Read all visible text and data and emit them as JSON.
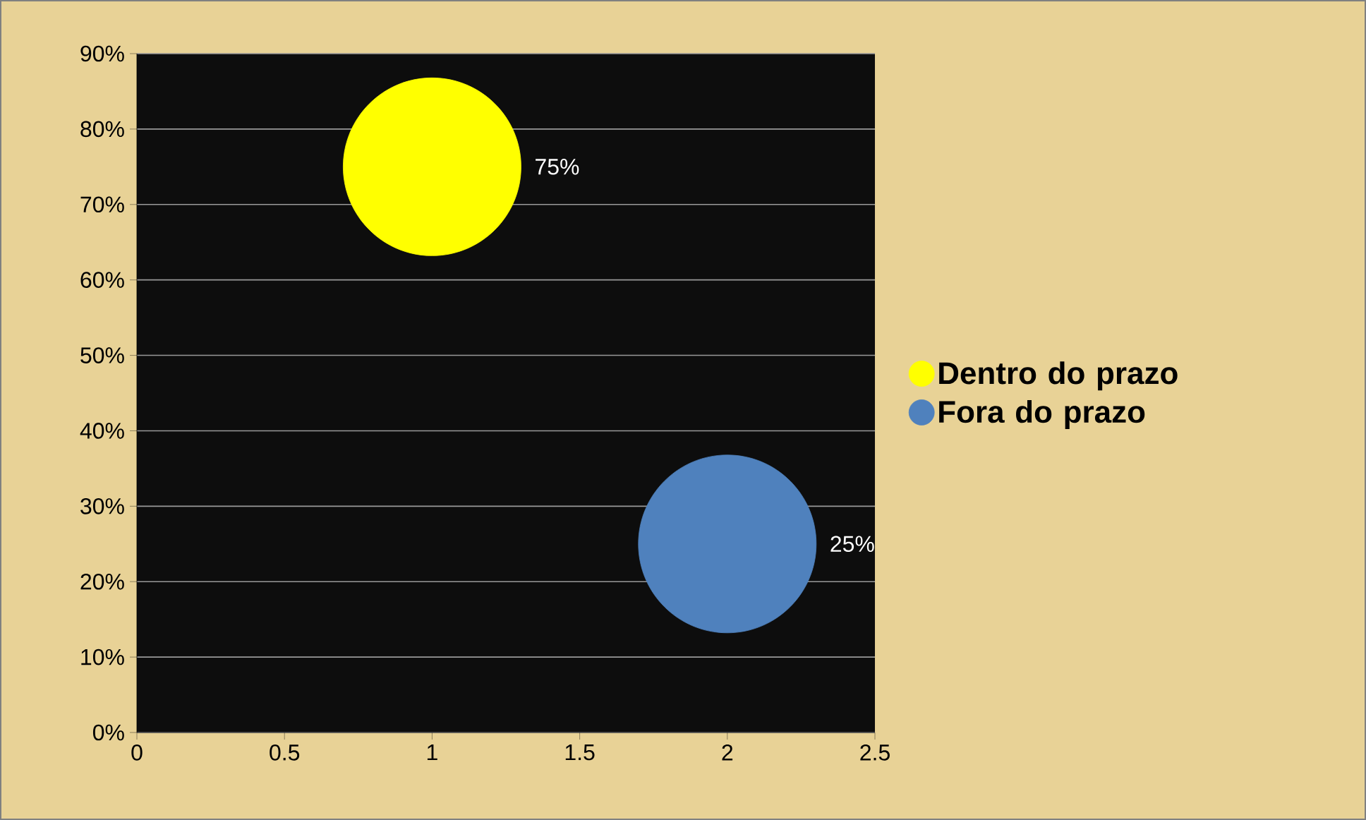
{
  "chart_data": {
    "type": "bubble",
    "series": [
      {
        "name": "Dentro do prazo",
        "color": "#ffff00",
        "x": [
          1
        ],
        "values": [
          75
        ],
        "sizes": [
          1
        ],
        "value_labels": [
          "75%"
        ]
      },
      {
        "name": "Fora do prazo",
        "color": "#4f81bd",
        "x": [
          2
        ],
        "values": [
          25
        ],
        "sizes": [
          1
        ],
        "value_labels": [
          "25%"
        ]
      }
    ],
    "xlim": [
      0,
      2.5
    ],
    "xticks": [
      0,
      0.5,
      1,
      1.5,
      2,
      2.5
    ],
    "ylim": [
      0,
      90
    ],
    "yticks": [
      {
        "value": 0,
        "label": "0%"
      },
      {
        "value": 10,
        "label": "10%"
      },
      {
        "value": 20,
        "label": "20%"
      },
      {
        "value": 30,
        "label": "30%"
      },
      {
        "value": 40,
        "label": "40%"
      },
      {
        "value": 50,
        "label": "50%"
      },
      {
        "value": 60,
        "label": "60%"
      },
      {
        "value": 70,
        "label": "70%"
      },
      {
        "value": 80,
        "label": "80%"
      },
      {
        "value": 90,
        "label": "90%"
      }
    ],
    "grid": "y",
    "legend": "right",
    "marker": "circle"
  }
}
